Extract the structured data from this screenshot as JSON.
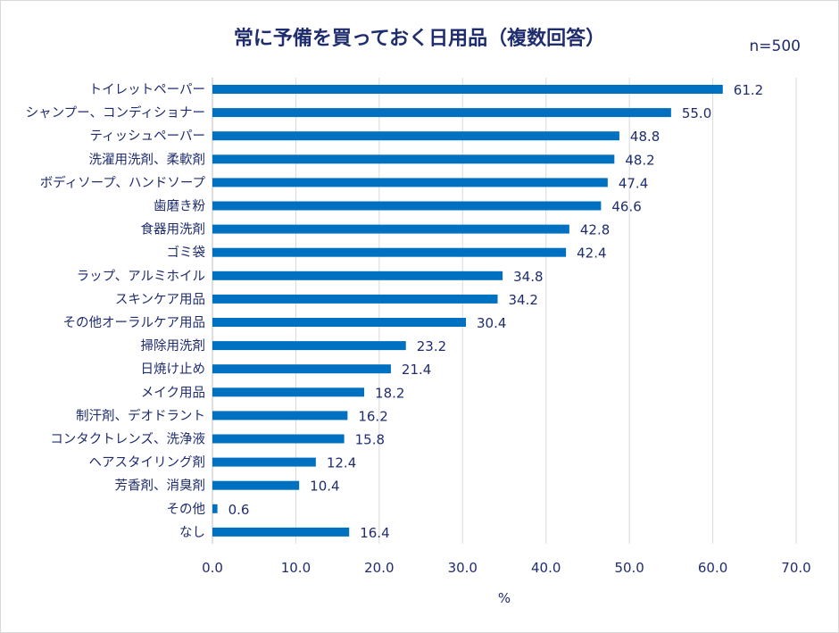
{
  "chart_data": {
    "type": "bar",
    "orientation": "horizontal",
    "title": "常に予備を買っておく日用品（複数回答）",
    "annotation": "n=500",
    "xlabel": "%",
    "ylabel": "",
    "xlim": [
      0,
      70
    ],
    "xticks": [
      "0.0",
      "10.0",
      "20.0",
      "30.0",
      "40.0",
      "50.0",
      "60.0",
      "70.0"
    ],
    "grid": "vertical",
    "bar_color": "#0070c0",
    "categories": [
      "トイレットペーパー",
      "シャンプー、コンディショナー",
      "ティッシュペーパー",
      "洗濯用洗剤、柔軟剤",
      "ボディソープ、ハンドソープ",
      "歯磨き粉",
      "食器用洗剤",
      "ゴミ袋",
      "ラップ、アルミホイル",
      "スキンケア用品",
      "その他オーラルケア用品",
      "掃除用洗剤",
      "日焼け止め",
      "メイク用品",
      "制汗剤、デオドラント",
      "コンタクトレンズ、洗浄液",
      "ヘアスタイリング剤",
      "芳香剤、消臭剤",
      "その他",
      "なし"
    ],
    "values": [
      61.2,
      55.0,
      48.8,
      48.2,
      47.4,
      46.6,
      42.8,
      42.4,
      34.8,
      34.2,
      30.4,
      23.2,
      21.4,
      18.2,
      16.2,
      15.8,
      12.4,
      10.4,
      0.6,
      16.4
    ]
  }
}
